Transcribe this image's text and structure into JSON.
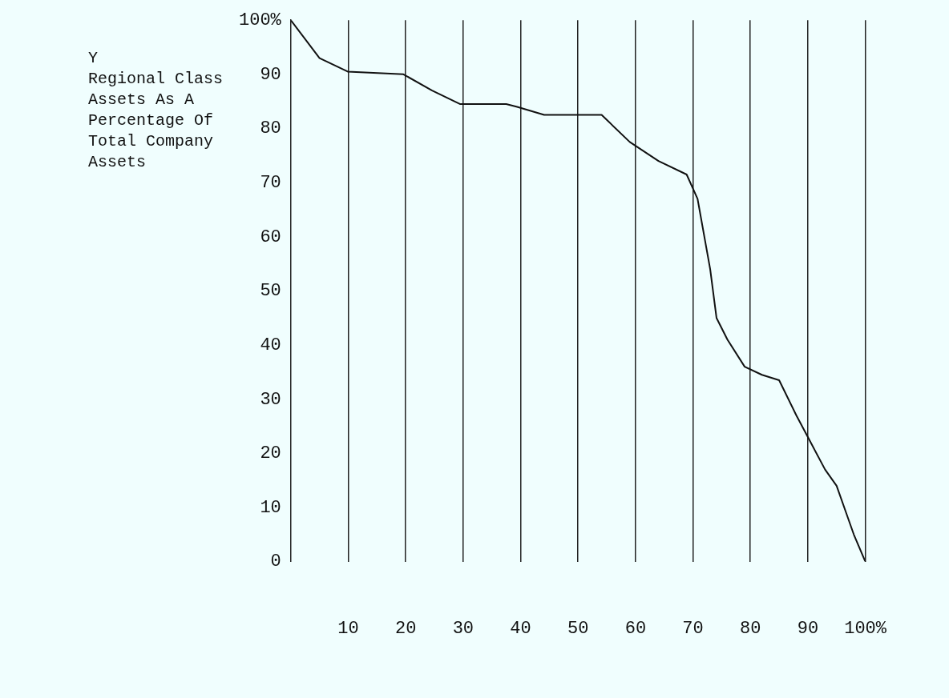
{
  "chart_data": {
    "type": "line",
    "ylabel": "Y\nRegional Class\nAssets As A\nPercentage Of\nTotal Company\nAssets",
    "x": [
      0,
      5,
      9.9,
      19.6,
      24.6,
      29.5,
      37.5,
      39.4,
      44.1,
      49.1,
      54.1,
      59,
      64,
      68.9,
      70.8,
      73,
      74.1,
      76,
      79,
      82,
      85,
      88,
      90,
      93,
      95,
      97,
      98,
      100
    ],
    "series": [
      {
        "color": "#111111",
        "values": [
          100,
          93,
          90.5,
          90,
          87,
          84.5,
          84.5,
          84,
          82.5,
          82.5,
          82.5,
          77.5,
          74,
          71.5,
          67,
          54,
          45,
          41,
          36,
          34.5,
          33.5,
          27,
          23,
          17,
          14,
          8,
          5,
          0
        ]
      }
    ],
    "xlim": [
      0,
      100
    ],
    "xticks": [
      10,
      20,
      30,
      40,
      50,
      60,
      70,
      80,
      90,
      {
        "value": 100,
        "label": "100%"
      }
    ],
    "ylim": [
      0,
      100
    ],
    "yticks": [
      0,
      10,
      20,
      30,
      40,
      50,
      60,
      70,
      80,
      90,
      {
        "value": 100,
        "label": "100%"
      }
    ],
    "grid": "x",
    "legend": false,
    "marker": "none",
    "line_style": "solid"
  }
}
